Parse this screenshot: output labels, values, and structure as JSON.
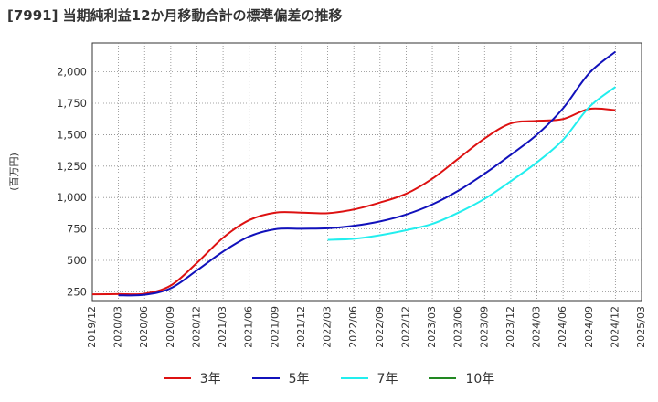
{
  "title": "[7991]  当期純利益12か月移動合計の標準偏差の推移",
  "chart_data": {
    "type": "line",
    "ylabel": "(百万円)",
    "xlabel": "",
    "x": [
      "2019/12",
      "2020/03",
      "2020/06",
      "2020/09",
      "2020/12",
      "2021/03",
      "2021/06",
      "2021/09",
      "2021/12",
      "2022/03",
      "2022/06",
      "2022/09",
      "2022/12",
      "2023/03",
      "2023/06",
      "2023/09",
      "2023/12",
      "2024/03",
      "2024/06",
      "2024/09",
      "2024/12",
      "2025/03"
    ],
    "yticks": [
      "250",
      "500",
      "750",
      "1,000",
      "1,250",
      "1,500",
      "1,750",
      "2,000"
    ],
    "ytick_values": [
      250,
      500,
      750,
      1000,
      1250,
      1500,
      1750,
      2000
    ],
    "ylim": [
      180,
      2230
    ],
    "grid": true,
    "legend_position": "bottom",
    "series": [
      {
        "name": "3年",
        "color": "#dd1111",
        "values": [
          230,
          232,
          235,
          300,
          480,
          680,
          820,
          880,
          880,
          875,
          905,
          960,
          1030,
          1150,
          1310,
          1470,
          1590,
          1610,
          1625,
          1705,
          1695,
          null
        ]
      },
      {
        "name": "5年",
        "color": "#1111bb",
        "values": [
          null,
          222,
          226,
          278,
          420,
          570,
          690,
          748,
          752,
          755,
          775,
          810,
          865,
          945,
          1055,
          1190,
          1340,
          1500,
          1710,
          1990,
          2160,
          null
        ]
      },
      {
        "name": "7年",
        "color": "#22eeee",
        "values": [
          null,
          null,
          null,
          null,
          null,
          null,
          null,
          null,
          null,
          663,
          672,
          700,
          740,
          790,
          880,
          990,
          1130,
          1280,
          1460,
          1720,
          1880,
          null
        ]
      },
      {
        "name": "10年",
        "color": "#228822",
        "values": [
          null,
          null,
          null,
          null,
          null,
          null,
          null,
          null,
          null,
          null,
          null,
          null,
          null,
          null,
          null,
          null,
          null,
          null,
          null,
          null,
          null,
          null
        ]
      }
    ]
  }
}
